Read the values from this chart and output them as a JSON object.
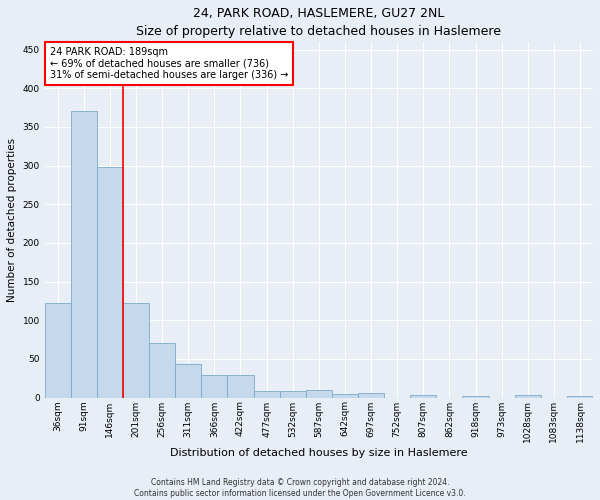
{
  "title1": "24, PARK ROAD, HASLEMERE, GU27 2NL",
  "title2": "Size of property relative to detached houses in Haslemere",
  "xlabel": "Distribution of detached houses by size in Haslemere",
  "ylabel": "Number of detached properties",
  "bar_labels": [
    "36sqm",
    "91sqm",
    "146sqm",
    "201sqm",
    "256sqm",
    "311sqm",
    "366sqm",
    "422sqm",
    "477sqm",
    "532sqm",
    "587sqm",
    "642sqm",
    "697sqm",
    "752sqm",
    "807sqm",
    "862sqm",
    "918sqm",
    "973sqm",
    "1028sqm",
    "1083sqm",
    "1138sqm"
  ],
  "bar_values": [
    122,
    370,
    298,
    122,
    70,
    43,
    29,
    29,
    8,
    8,
    10,
    5,
    6,
    0,
    4,
    0,
    2,
    0,
    3,
    0,
    2
  ],
  "bar_color": "#c6d9ec",
  "bar_edge_color": "#7aaac8",
  "vline_x": 2.5,
  "vline_color": "red",
  "annotation_line1": "24 PARK ROAD: 189sqm",
  "annotation_line2": "← 69% of detached houses are smaller (736)",
  "annotation_line3": "31% of semi-detached houses are larger (336) →",
  "annotation_box_color": "white",
  "annotation_box_edge_color": "red",
  "ylim": [
    0,
    460
  ],
  "yticks": [
    0,
    50,
    100,
    150,
    200,
    250,
    300,
    350,
    400,
    450
  ],
  "footnote1": "Contains HM Land Registry data © Crown copyright and database right 2024.",
  "footnote2": "Contains public sector information licensed under the Open Government Licence v3.0.",
  "background_color": "#e8eef5",
  "plot_background_color": "#e8eef5",
  "grid_color": "#ffffff",
  "title1_fontsize": 9,
  "title2_fontsize": 8.5,
  "xlabel_fontsize": 8,
  "ylabel_fontsize": 7.5,
  "tick_fontsize": 6.5,
  "annot_fontsize": 7,
  "footnote_fontsize": 5.5
}
